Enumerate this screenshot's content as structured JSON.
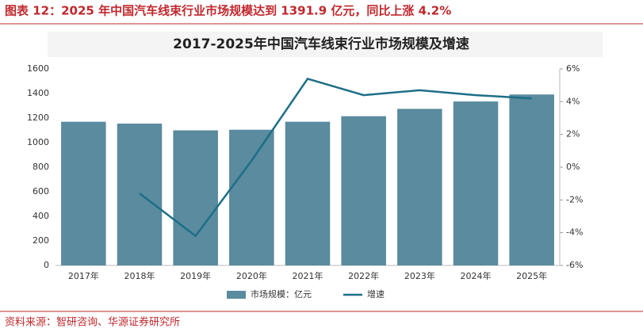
{
  "header": {
    "title": "图表 12：2025 年中国汽车线束行业市场规模达到 1391.9 亿元，同比上涨 4.2%"
  },
  "chart_data": {
    "type": "bar",
    "title": "2017-2025年中国汽车线束行业市场规模及增速",
    "categories": [
      "2017年",
      "2018年",
      "2019年",
      "2020年",
      "2021年",
      "2022年",
      "2023年",
      "2024年",
      "2025年"
    ],
    "series": [
      {
        "name": "市场规模：亿元",
        "type": "bar",
        "color": "#5a8b9e",
        "values": [
          1170,
          1155,
          1100,
          1105,
          1170,
          1215,
          1275,
          1335,
          1391.9
        ]
      },
      {
        "name": "增速",
        "type": "line",
        "axis": "y2",
        "color": "#1d6f87",
        "values": [
          null,
          -1.6,
          -4.2,
          0.4,
          5.4,
          4.4,
          4.7,
          4.4,
          4.2
        ]
      }
    ],
    "ylim": [
      0,
      1600
    ],
    "yticks": [
      0,
      200,
      400,
      600,
      800,
      1000,
      1200,
      1400,
      1600
    ],
    "y2lim": [
      -6,
      6
    ],
    "y2ticks": [
      {
        "value": -6,
        "label": "-6%"
      },
      {
        "value": -4,
        "label": "-4%"
      },
      {
        "value": -2,
        "label": "-2%"
      },
      {
        "value": 0,
        "label": "0%"
      },
      {
        "value": 2,
        "label": "2%"
      },
      {
        "value": 4,
        "label": "4%"
      },
      {
        "value": 6,
        "label": "6%"
      }
    ],
    "grid": false,
    "legend": "bottom"
  },
  "source": "资料来源：智研咨询、华源证券研究所"
}
